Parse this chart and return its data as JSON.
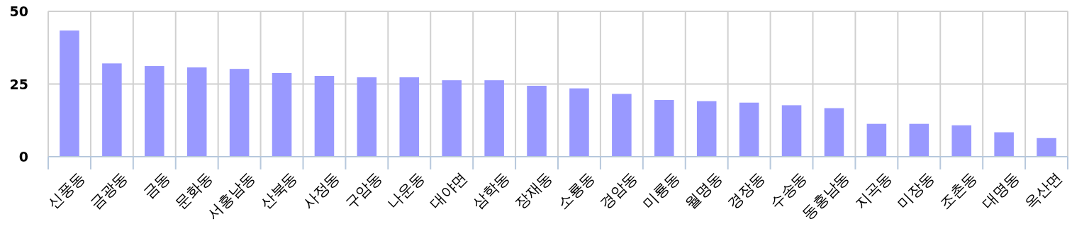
{
  "chart_data": {
    "type": "bar",
    "categories": [
      "신풍동",
      "금광동",
      "금동",
      "문화동",
      "서홍남동",
      "산북동",
      "사정동",
      "구암동",
      "나운동",
      "대야면",
      "삼학동",
      "장재동",
      "소룡동",
      "경암동",
      "미룡동",
      "월명동",
      "경장동",
      "수송동",
      "동홍남동",
      "지곡동",
      "미장동",
      "조촌동",
      "대명동",
      "옥산면"
    ],
    "values": [
      43.4,
      32.1,
      31.2,
      30.7,
      30.2,
      28.8,
      27.8,
      27.3,
      27.3,
      26.3,
      26.3,
      24.4,
      23.5,
      21.6,
      19.5,
      19.1,
      18.6,
      17.7,
      16.7,
      11.3,
      11.3,
      10.8,
      8.4,
      6.4
    ],
    "color": "#9999ff",
    "ylim": [
      0,
      50
    ],
    "yticks": [
      0,
      25,
      50
    ],
    "grid": true
  }
}
